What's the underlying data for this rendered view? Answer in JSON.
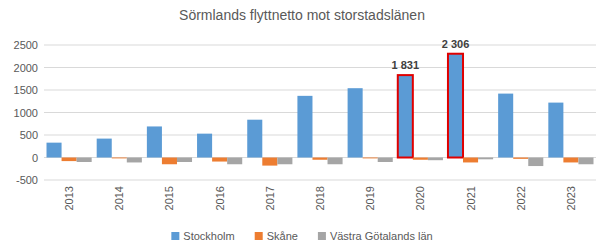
{
  "chart_data": {
    "type": "bar",
    "title": "Sörmlands flyttnetto mot storstadslänen",
    "categories": [
      "2013",
      "2014",
      "2015",
      "2016",
      "2017",
      "2018",
      "2019",
      "2020",
      "2021",
      "2022",
      "2023"
    ],
    "series": [
      {
        "name": "Stockholm",
        "color": "#5b9bd5",
        "values": [
          330,
          420,
          690,
          530,
          840,
          1370,
          1540,
          1831,
          2306,
          1420,
          1220
        ],
        "value_labels": [
          null,
          null,
          null,
          null,
          null,
          null,
          null,
          "1 831",
          "2 306",
          null,
          null
        ]
      },
      {
        "name": "Skåne",
        "color": "#ed7d31",
        "values": [
          -80,
          -20,
          -150,
          -90,
          -180,
          -50,
          -20,
          -50,
          -110,
          -30,
          -110
        ]
      },
      {
        "name": "Västra Götalands län",
        "color": "#a5a5a5",
        "values": [
          -100,
          -110,
          -100,
          -150,
          -150,
          -150,
          -100,
          -60,
          -40,
          -190,
          -150
        ]
      }
    ],
    "ylim": [
      -500,
      2500
    ],
    "yticks": [
      -500,
      0,
      500,
      1000,
      1500,
      2000,
      2500
    ],
    "grid": true,
    "legend": "bottom"
  }
}
